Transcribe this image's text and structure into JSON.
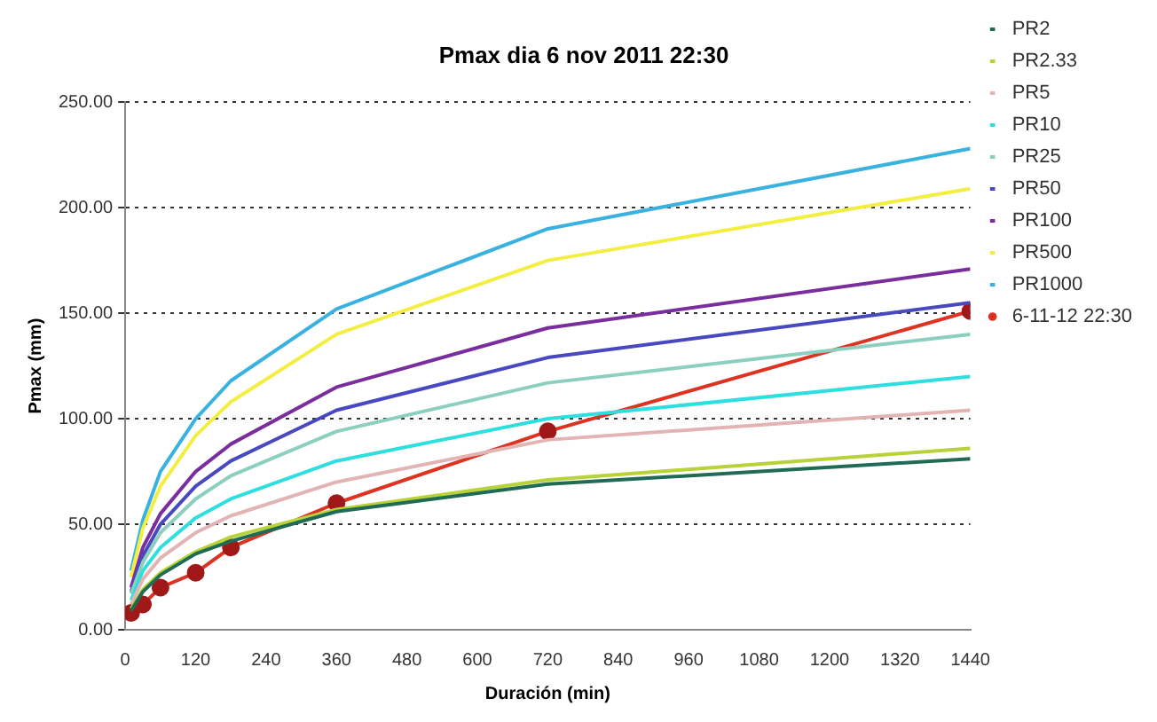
{
  "chart_data": {
    "type": "line",
    "title": "Pmax dia 6 nov 2011 22:30",
    "xlabel": "Duración (min)",
    "ylabel": "Pmax (mm)",
    "x": [
      10,
      30,
      60,
      120,
      180,
      360,
      720,
      1440
    ],
    "xlim": [
      0,
      1440
    ],
    "xticks": [
      0,
      120,
      240,
      360,
      480,
      600,
      720,
      840,
      960,
      1080,
      1200,
      1320,
      1440
    ],
    "ylim": [
      0,
      250
    ],
    "yticks": [
      {
        "value": 0,
        "label": "0.00"
      },
      {
        "value": 50,
        "label": "50.00"
      },
      {
        "value": 100,
        "label": "100.00"
      },
      {
        "value": 150,
        "label": "150.00"
      },
      {
        "value": 200,
        "label": "200.00"
      },
      {
        "value": 250,
        "label": "250.00"
      }
    ],
    "grid": "y",
    "legend": "top right",
    "marker": "none",
    "line_style": "solid",
    "series": [
      {
        "name": "PR2",
        "color": "#1f6b55",
        "values": [
          9,
          18,
          26,
          36,
          42,
          56,
          69,
          81
        ]
      },
      {
        "name": "PR2.33",
        "color": "#b8d23a",
        "values": [
          10,
          19,
          27,
          37,
          44,
          57,
          71,
          86
        ]
      },
      {
        "name": "PR5",
        "color": "#e3b4b4",
        "values": [
          12,
          24,
          34,
          46,
          54,
          70,
          90,
          104
        ]
      },
      {
        "name": "PR10",
        "color": "#2fdede",
        "values": [
          14,
          28,
          39,
          53,
          62,
          80,
          100,
          120
        ]
      },
      {
        "name": "PR25",
        "color": "#8ccfbf",
        "values": [
          17,
          32,
          46,
          62,
          73,
          94,
          117,
          140
        ]
      },
      {
        "name": "PR50",
        "color": "#4848c0",
        "values": [
          18,
          35,
          50,
          68,
          80,
          104,
          129,
          155
        ]
      },
      {
        "name": "PR100",
        "color": "#7a2e9e",
        "values": [
          20,
          39,
          55,
          75,
          88,
          115,
          143,
          171
        ]
      },
      {
        "name": "PR500",
        "color": "#f4ee42",
        "values": [
          25,
          48,
          68,
          92,
          108,
          140,
          175,
          209
        ]
      },
      {
        "name": "PR1000",
        "color": "#3ab2e0",
        "values": [
          28,
          52,
          75,
          100,
          118,
          152,
          190,
          228
        ]
      },
      {
        "name": "6-11-12 22:30",
        "color": "#dd3322",
        "marker": "circle",
        "x": [
          10,
          30,
          60,
          120,
          180,
          360,
          720,
          1440
        ],
        "values": [
          8,
          12,
          20,
          27,
          39,
          60,
          94,
          151
        ]
      }
    ]
  }
}
